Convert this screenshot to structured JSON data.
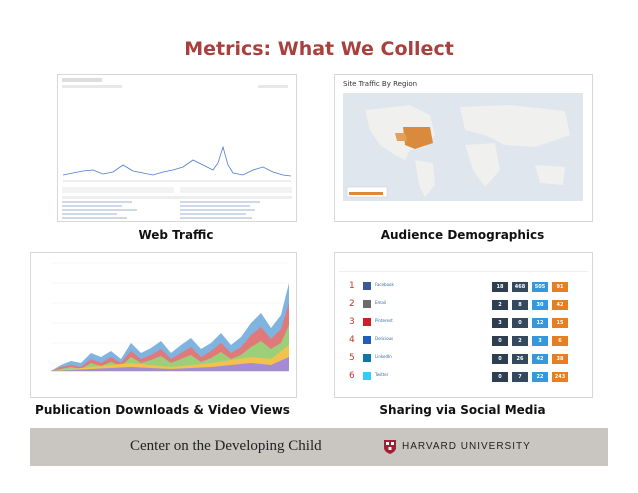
{
  "title": "Metrics: What We Collect",
  "captions": {
    "web_traffic": "Web Traffic",
    "audience": "Audience Demographics",
    "downloads": "Publication Downloads & Video Views",
    "sharing": "Sharing via Social Media"
  },
  "map_panel": {
    "heading": "Site Traffic By Region"
  },
  "sharing_panel": {
    "rows": [
      {
        "rank": "1",
        "name": "Facebook",
        "icon": "facebook-icon",
        "color": "#3b5998",
        "v": [
          "18",
          "468",
          "505",
          "91"
        ]
      },
      {
        "rank": "2",
        "name": "Email",
        "icon": "email-icon",
        "color": "#6b6b6b",
        "v": [
          "2",
          "8",
          "30",
          "42"
        ]
      },
      {
        "rank": "3",
        "name": "Pinterest",
        "icon": "pinterest-icon",
        "color": "#cb2027",
        "v": [
          "3",
          "0",
          "12",
          "15"
        ]
      },
      {
        "rank": "4",
        "name": "Delicious",
        "icon": "delicious-icon",
        "color": "#205cc0",
        "v": [
          "0",
          "2",
          "3",
          "6"
        ]
      },
      {
        "rank": "5",
        "name": "LinkedIn",
        "icon": "linkedin-icon",
        "color": "#0e76a8",
        "v": [
          "0",
          "26",
          "42",
          "38"
        ]
      },
      {
        "rank": "6",
        "name": "Twitter",
        "icon": "twitter-icon",
        "color": "#33ccff",
        "v": [
          "0",
          "7",
          "22",
          "243"
        ]
      }
    ],
    "header_cols": [
      "",
      "",
      "",
      ""
    ]
  },
  "footer": {
    "center": "Center on the Developing Child",
    "university": "HARVARD UNIVERSITY"
  },
  "colors": {
    "title": "#a8403e",
    "footer_bg": "#c9c6c1",
    "box1": "#2c3e50",
    "box2": "#34495e",
    "box3": "#3498db",
    "box4": "#e67e22"
  }
}
